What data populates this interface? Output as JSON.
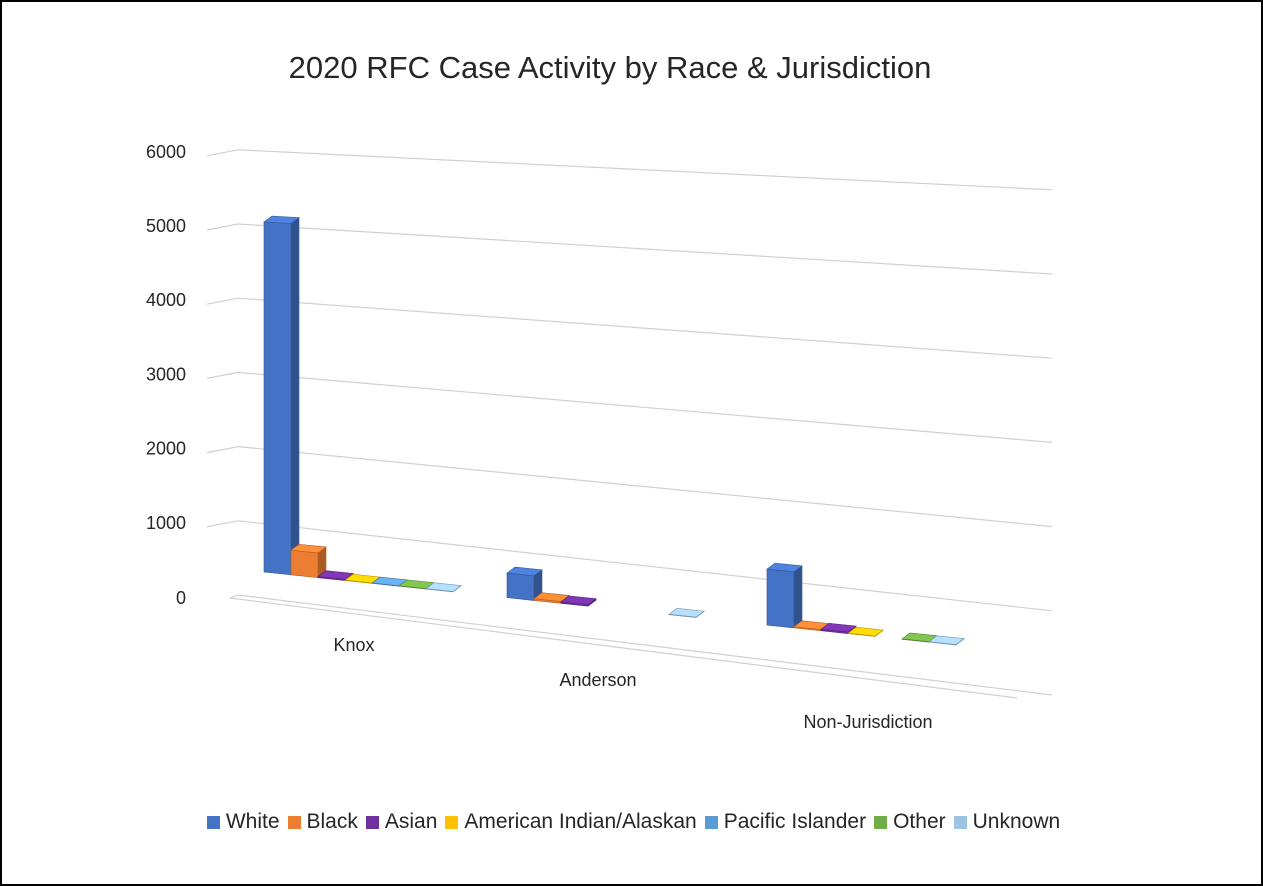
{
  "chart_data": {
    "type": "bar",
    "title": "2020 RFC Case Activity by Race & Jurisdiction",
    "xlabel": "",
    "ylabel": "",
    "ylim": [
      0,
      6000
    ],
    "yticks": [
      0,
      1000,
      2000,
      3000,
      4000,
      5000,
      6000
    ],
    "grid": true,
    "legend_position": "bottom",
    "categories": [
      "Knox",
      "Anderson",
      "Non-Jurisdiction"
    ],
    "series": [
      {
        "name": "White",
        "color": "#4472C4",
        "values": [
          5000,
          340,
          750
        ]
      },
      {
        "name": "Black",
        "color": "#ED7D31",
        "values": [
          350,
          25,
          15
        ]
      },
      {
        "name": "Asian",
        "color": "#7030A0",
        "values": [
          15,
          20,
          20
        ]
      },
      {
        "name": "American Indian/Alaskan",
        "color": "#FFC000",
        "values": [
          5,
          0,
          5
        ]
      },
      {
        "name": "Pacific Islander",
        "color": "#5B9BD5",
        "values": [
          5,
          0,
          0
        ]
      },
      {
        "name": "Other",
        "color": "#70AD47",
        "values": [
          5,
          0,
          5
        ]
      },
      {
        "name": "Unknown",
        "color": "#9DC3E6",
        "values": [
          5,
          5,
          5
        ]
      }
    ]
  }
}
